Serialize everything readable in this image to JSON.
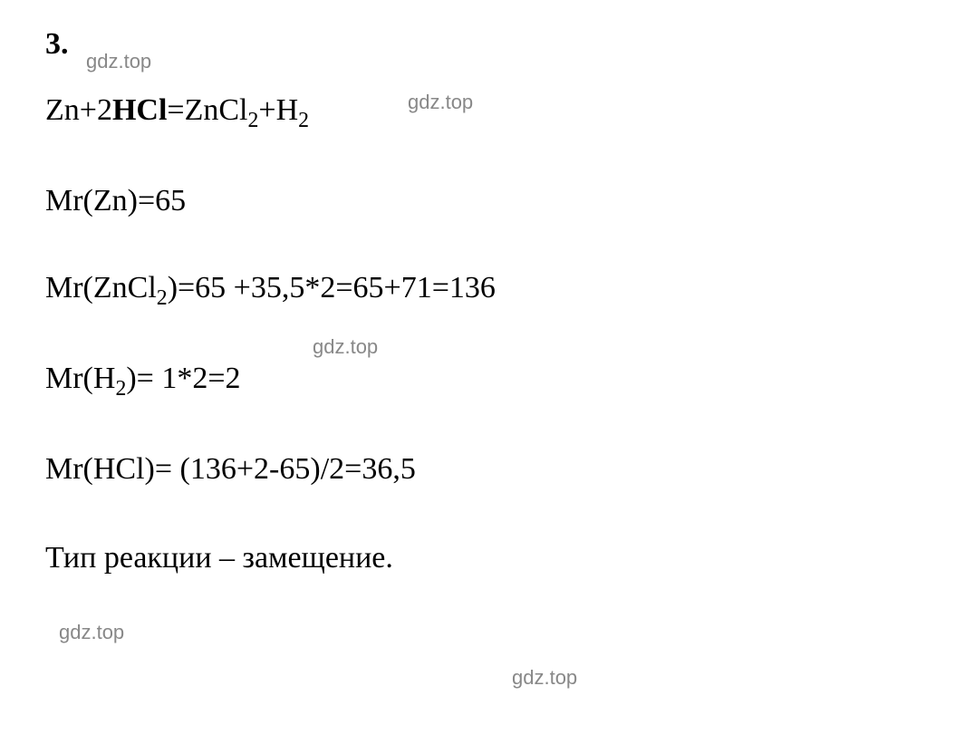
{
  "problem": {
    "number": "3."
  },
  "watermarks": {
    "text": "gdz.top",
    "color": "#888888",
    "fontsize": 22
  },
  "lines": {
    "equation1_part1": "Zn+2",
    "equation1_bold": "HCl",
    "equation1_part2": "=ZnCl",
    "equation1_sub1": "2",
    "equation1_part3": "+H",
    "equation1_sub2": "2",
    "line2": "Mr(Zn)=65",
    "line3_part1": "Mr(ZnCl",
    "line3_sub1": "2",
    "line3_part2": ")=65 +35,5*2=65+71=136",
    "line4_part1": "Mr(H",
    "line4_sub1": "2",
    "line4_part2": ")= 1*2=2",
    "line5": "Mr(HCl)= (136+2-65)/2=36,5",
    "conclusion": "Тип реакции – замещение."
  },
  "styling": {
    "background_color": "#ffffff",
    "text_color": "#000000",
    "font_family": "Times New Roman",
    "fontsize": 34,
    "line_spacing": 48
  }
}
